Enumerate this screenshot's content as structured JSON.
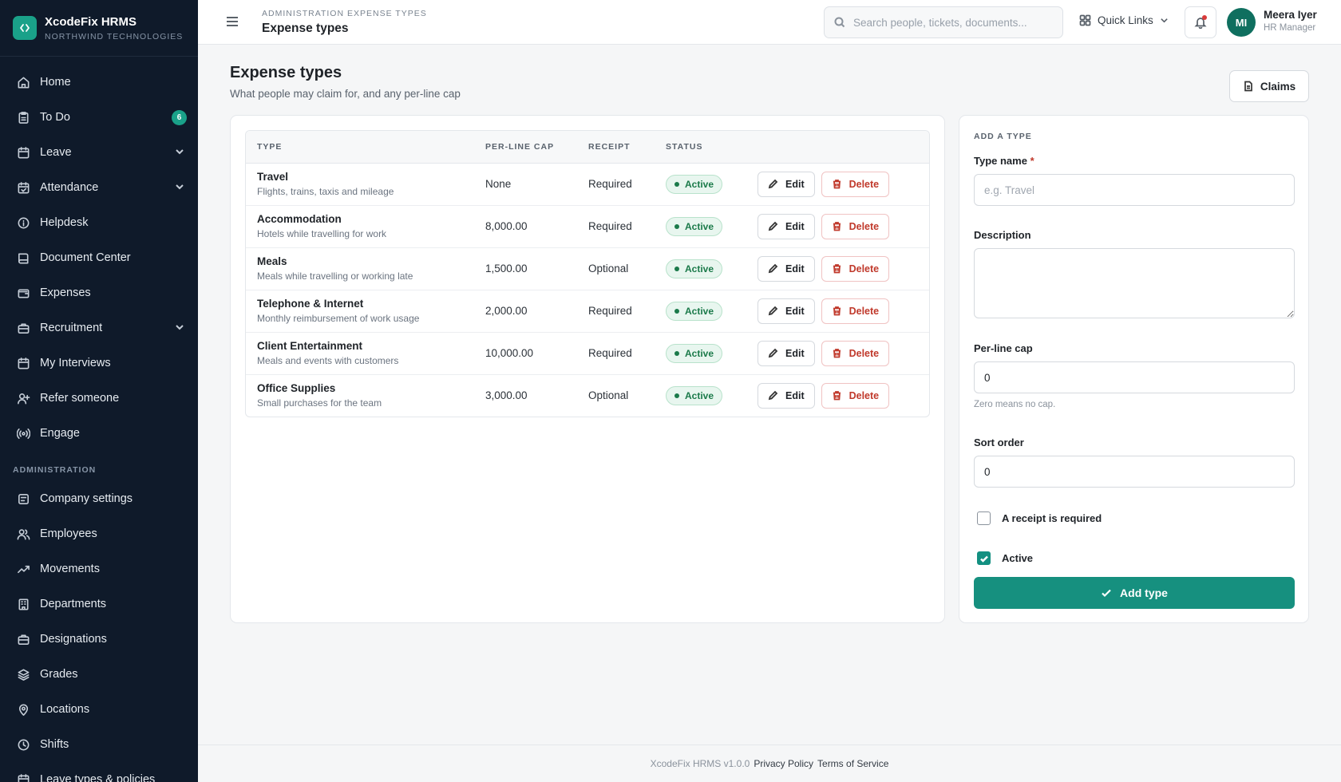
{
  "brand": {
    "name": "XcodeFix HRMS",
    "sub": "NORTHWIND TECHNOLOGIES",
    "logo_glyph": "‹ ›"
  },
  "sidebar": {
    "items": [
      {
        "label": "Home",
        "icon": "home-icon"
      },
      {
        "label": "To Do",
        "icon": "clipboard-icon",
        "badge": "6"
      },
      {
        "label": "Leave",
        "icon": "calendar-icon",
        "chevron": true
      },
      {
        "label": "Attendance",
        "icon": "calendar-check-icon",
        "chevron": true
      },
      {
        "label": "Helpdesk",
        "icon": "info-icon"
      },
      {
        "label": "Document Center",
        "icon": "book-icon"
      },
      {
        "label": "Expenses",
        "icon": "wallet-icon"
      },
      {
        "label": "Recruitment",
        "icon": "briefcase-icon",
        "chevron": true
      },
      {
        "label": "My Interviews",
        "icon": "calendar-icon"
      },
      {
        "label": "Refer someone",
        "icon": "user-plus-icon"
      },
      {
        "label": "Engage",
        "icon": "broadcast-icon"
      }
    ],
    "admin_section": "ADMINISTRATION",
    "admin_items": [
      {
        "label": "Company settings",
        "icon": "gear-icon"
      },
      {
        "label": "Employees",
        "icon": "users-icon"
      },
      {
        "label": "Movements",
        "icon": "trend-icon"
      },
      {
        "label": "Departments",
        "icon": "building-icon"
      },
      {
        "label": "Designations",
        "icon": "briefcase-icon"
      },
      {
        "label": "Grades",
        "icon": "layers-icon"
      },
      {
        "label": "Locations",
        "icon": "pin-icon"
      },
      {
        "label": "Shifts",
        "icon": "clock-icon"
      },
      {
        "label": "Leave types & policies",
        "icon": "calendar-icon"
      }
    ]
  },
  "header": {
    "breadcrumb": "ADMINISTRATION  EXPENSE TYPES",
    "title": "Expense types",
    "search_placeholder": "Search people, tickets, documents...",
    "quick_links": "Quick Links",
    "user": {
      "initials": "MI",
      "name": "Meera Iyer",
      "role": "HR Manager"
    }
  },
  "page": {
    "title": "Expense types",
    "subtitle": "What people may claim for, and any per-line cap",
    "claims_button": "Claims"
  },
  "table": {
    "columns": [
      "TYPE",
      "PER-LINE CAP",
      "RECEIPT",
      "STATUS"
    ],
    "edit_label": "Edit",
    "delete_label": "Delete",
    "rows": [
      {
        "name": "Travel",
        "desc": "Flights, trains, taxis and mileage",
        "cap": "None",
        "receipt": "Required",
        "status": "Active"
      },
      {
        "name": "Accommodation",
        "desc": "Hotels while travelling for work",
        "cap": "8,000.00",
        "receipt": "Required",
        "status": "Active"
      },
      {
        "name": "Meals",
        "desc": "Meals while travelling or working late",
        "cap": "1,500.00",
        "receipt": "Optional",
        "status": "Active"
      },
      {
        "name": "Telephone & Internet",
        "desc": "Monthly reimbursement of work usage",
        "cap": "2,000.00",
        "receipt": "Required",
        "status": "Active"
      },
      {
        "name": "Client Entertainment",
        "desc": "Meals and events with customers",
        "cap": "10,000.00",
        "receipt": "Required",
        "status": "Active"
      },
      {
        "name": "Office Supplies",
        "desc": "Small purchases for the team",
        "cap": "3,000.00",
        "receipt": "Optional",
        "status": "Active"
      }
    ]
  },
  "form": {
    "section": "ADD A TYPE",
    "type_name_label": "Type name",
    "required_mark": "*",
    "type_name_placeholder": "e.g. Travel",
    "description_label": "Description",
    "cap_label": "Per-line cap",
    "cap_value": "0",
    "cap_hint": "Zero means no cap.",
    "sort_label": "Sort order",
    "sort_value": "0",
    "receipt_label": "A receipt is required",
    "receipt_checked": false,
    "active_label": "Active",
    "active_checked": true,
    "submit": "Add type"
  },
  "footer": {
    "version": "XcodeFix HRMS v1.0.0",
    "privacy": "Privacy Policy",
    "terms": "Terms of Service"
  },
  "colors": {
    "accent": "#16907f",
    "sidebar_bg": "#0f1a2a",
    "danger": "#c0392b",
    "success": "#1b7a4a"
  }
}
